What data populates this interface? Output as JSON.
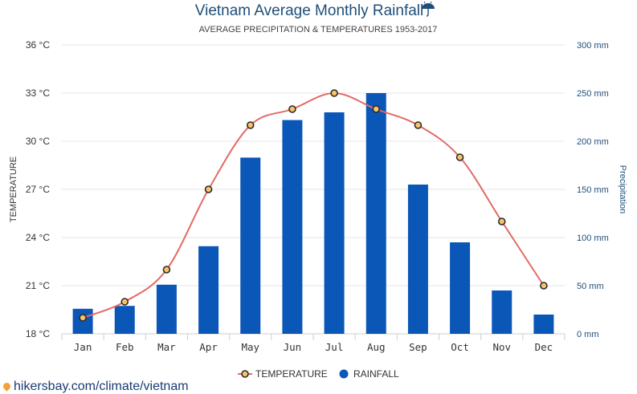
{
  "title": "Vietnam Average Monthly Rainfall",
  "title_icon": "umbrella-rain-icon",
  "subtitle": "AVERAGE PRECIPITATION & TEMPERATURES 1953-2017",
  "footer": {
    "link_text": "hikersbay.com/climate/vietnam",
    "icon": "map-pin-icon"
  },
  "colors": {
    "bar": "#0b57b8",
    "line": "#e36a66",
    "marker_fill": "#f7c36b",
    "marker_stroke": "#2b2b2b",
    "title": "#1f4e79"
  },
  "chart_data": {
    "type": "bar",
    "categories": [
      "Jan",
      "Feb",
      "Mar",
      "Apr",
      "May",
      "Jun",
      "Jul",
      "Aug",
      "Sep",
      "Oct",
      "Nov",
      "Dec"
    ],
    "series": [
      {
        "name": "RAINFALL",
        "type": "bar",
        "axis": "right",
        "values": [
          26,
          29,
          51,
          91,
          183,
          222,
          230,
          250,
          155,
          95,
          45,
          20
        ]
      },
      {
        "name": "TEMPERATURE",
        "type": "line",
        "axis": "left",
        "values": [
          19,
          20,
          22,
          27,
          31,
          32,
          33,
          32,
          31,
          29,
          25,
          21
        ]
      }
    ],
    "left_axis": {
      "label": "TEMPERATURE",
      "ylim": [
        18,
        36
      ],
      "ticks": [
        "18 °C",
        "21 °C",
        "24 °C",
        "27 °C",
        "30 °C",
        "33 °C",
        "36 °C"
      ]
    },
    "right_axis": {
      "label": "Precipitation",
      "ylim": [
        0,
        300
      ],
      "ticks": [
        "0 mm",
        "50 mm",
        "100 mm",
        "150 mm",
        "200 mm",
        "250 mm",
        "300 mm"
      ]
    },
    "grid": true,
    "legend": {
      "placement": "bottom-center",
      "entries": [
        "TEMPERATURE",
        "RAINFALL"
      ]
    }
  }
}
